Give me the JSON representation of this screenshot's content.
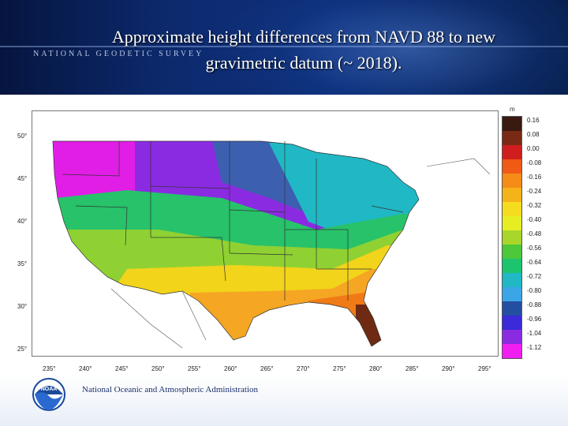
{
  "header": {
    "title_line1": "Approximate height differences from NAVD 88 to new",
    "title_line2": "gravimetric datum (~ 2018).",
    "agency_banner": "NATIONAL GEODETIC SURVEY"
  },
  "map": {
    "latitude_labels": [
      "50°",
      "45°",
      "40°",
      "35°",
      "30°",
      "25°"
    ],
    "longitude_labels": [
      "235°",
      "240°",
      "245°",
      "250°",
      "255°",
      "260°",
      "265°",
      "270°",
      "275°",
      "280°",
      "285°",
      "290°",
      "295°"
    ],
    "regions": [
      {
        "name": "pacific-northwest",
        "color": "#e11ee6"
      },
      {
        "name": "northern-rockies",
        "color": "#8a2be2"
      },
      {
        "name": "northern-plains",
        "color": "#3d5fb0"
      },
      {
        "name": "great-lakes",
        "color": "#1fb8c4"
      },
      {
        "name": "central-plains",
        "color": "#27c26a"
      },
      {
        "name": "southwest",
        "color": "#8fd133"
      },
      {
        "name": "southern-plains",
        "color": "#f2d41a"
      },
      {
        "name": "texas-gulf",
        "color": "#f5a623"
      },
      {
        "name": "southeast",
        "color": "#f07a16"
      },
      {
        "name": "florida",
        "color": "#6e2a12"
      }
    ]
  },
  "scale": {
    "unit": "m",
    "labels": [
      "0.16",
      "0.08",
      "0.00",
      "-0.08",
      "-0.16",
      "-0.24",
      "-0.32",
      "-0.40",
      "-0.48",
      "-0.56",
      "-0.64",
      "-0.72",
      "-0.80",
      "-0.88",
      "-0.96",
      "-1.04",
      "-1.12"
    ],
    "colors": [
      "#3a1a10",
      "#7a2a14",
      "#d01e1e",
      "#f05a14",
      "#f58c18",
      "#f5b31a",
      "#f5dc1e",
      "#e6ee22",
      "#a8d62a",
      "#4cc83a",
      "#1cc46e",
      "#1fb8c4",
      "#3aa6e8",
      "#234fa0",
      "#3a2ad8",
      "#8a2be2",
      "#f01ef0"
    ]
  },
  "footer": {
    "org_name": "National Oceanic and Atmospheric Administration",
    "logo_text": "NOAA"
  }
}
